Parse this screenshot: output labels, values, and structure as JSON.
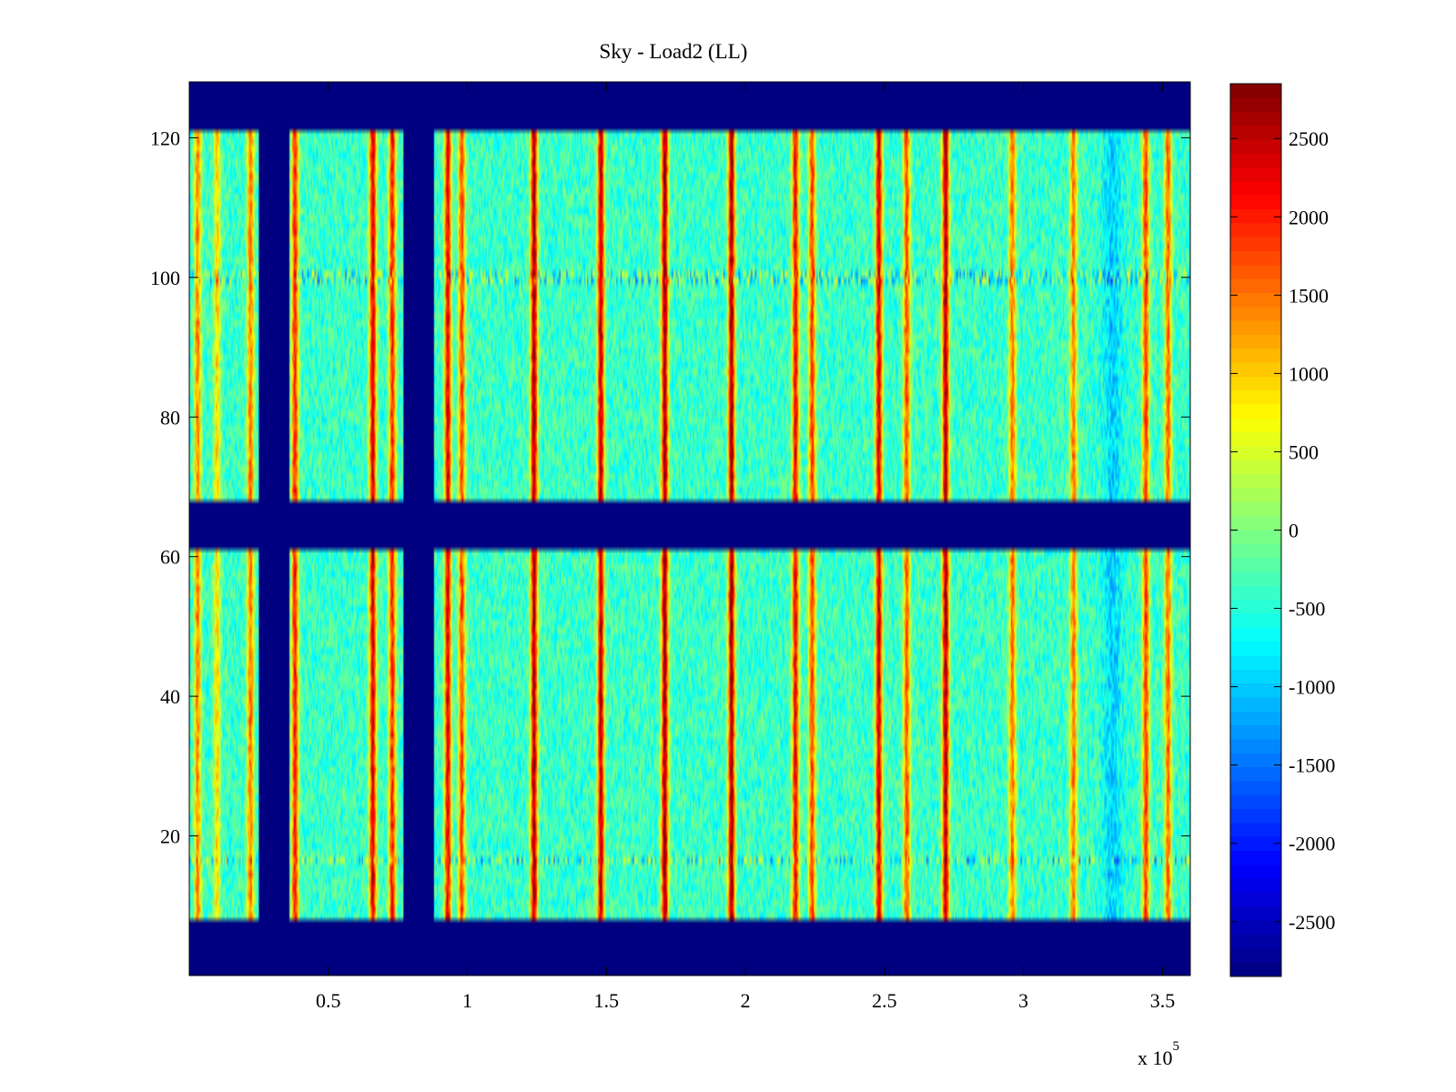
{
  "chart_data": {
    "type": "heatmap",
    "title": "Sky - Load2 (LL)",
    "xlabel": "",
    "ylabel": "",
    "x_range": [
      0,
      360000
    ],
    "y_range": [
      0,
      128
    ],
    "x_ticks": [
      50000,
      100000,
      150000,
      200000,
      250000,
      300000,
      350000
    ],
    "x_tick_labels": [
      "0.5",
      "1",
      "1.5",
      "2",
      "2.5",
      "3",
      "3.5"
    ],
    "x_multiplier_label": "x 10",
    "x_multiplier_exponent": "5",
    "y_ticks": [
      20,
      40,
      60,
      80,
      100,
      120
    ],
    "y_tick_labels": [
      "20",
      "40",
      "60",
      "80",
      "100",
      "120"
    ],
    "colorbar": {
      "colormap": "jet",
      "range": [
        -2850,
        2850
      ],
      "ticks": [
        2500,
        2000,
        1500,
        1000,
        500,
        0,
        -500,
        -1000,
        -1500,
        -2000,
        -2500
      ],
      "tick_labels": [
        "2500",
        "2000",
        "1500",
        "1000",
        "500",
        "0",
        "-500",
        "-1000",
        "-1500",
        "-2000",
        "-2500"
      ]
    },
    "masked_row_bands": [
      [
        0,
        8
      ],
      [
        61,
        68
      ],
      [
        121,
        128
      ]
    ],
    "masked_column_bands": [
      [
        25000,
        36000
      ],
      [
        77000,
        88000
      ]
    ],
    "noisy_rows": [
      16,
      99,
      100
    ],
    "base_level": -400,
    "column_features": [
      {
        "x": 3000,
        "value": 1400
      },
      {
        "x": 10000,
        "value": 900
      },
      {
        "x": 22000,
        "value": 1500
      },
      {
        "x": 38000,
        "value": 2000
      },
      {
        "x": 66000,
        "value": 2400
      },
      {
        "x": 73000,
        "value": 2000
      },
      {
        "x": 93000,
        "value": 2300
      },
      {
        "x": 98000,
        "value": 1800
      },
      {
        "x": 124000,
        "value": 2600
      },
      {
        "x": 148000,
        "value": 2500
      },
      {
        "x": 171000,
        "value": 2700
      },
      {
        "x": 195000,
        "value": 2700
      },
      {
        "x": 218000,
        "value": 2200
      },
      {
        "x": 224000,
        "value": 1800
      },
      {
        "x": 248000,
        "value": 2400
      },
      {
        "x": 258000,
        "value": 1700
      },
      {
        "x": 272000,
        "value": 2600
      },
      {
        "x": 296000,
        "value": 1500
      },
      {
        "x": 318000,
        "value": 1500
      },
      {
        "x": 344000,
        "value": 1800
      },
      {
        "x": 352000,
        "value": 1600
      }
    ],
    "cold_column_features": [
      {
        "x": 332000,
        "value": -1300
      }
    ]
  }
}
